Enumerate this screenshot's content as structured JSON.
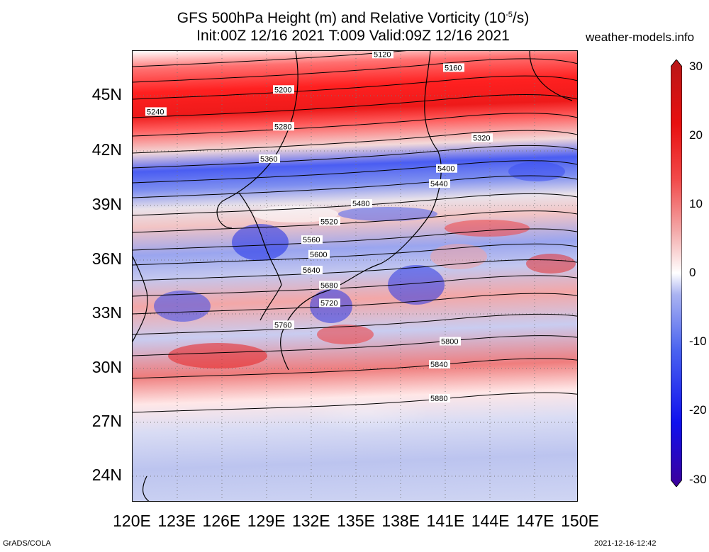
{
  "title": {
    "line1_pre": "GFS 500hPa Height (m) and Relative Vorticity (10",
    "line1_sup": "-5",
    "line1_post": "/s)",
    "line2": "Init:00Z 12/16 2021 T:009 Valid:09Z 12/16 2021"
  },
  "site": "weather-models.info",
  "lat_labels": [
    "45N",
    "42N",
    "39N",
    "36N",
    "33N",
    "30N",
    "27N",
    "24N"
  ],
  "lon_labels": [
    "120E",
    "123E",
    "126E",
    "129E",
    "132E",
    "135E",
    "138E",
    "141E",
    "144E",
    "147E",
    "150E"
  ],
  "colorbar": {
    "labels": [
      "30",
      "20",
      "10",
      "0",
      "-10",
      "-20",
      "-30"
    ],
    "colors": [
      "#3d0099",
      "#1010ee",
      "#4a63f0",
      "#aab3f1",
      "#ffffff",
      "#f3a8a8",
      "#f24a4a",
      "#e81010",
      "#b81818"
    ]
  },
  "contours": [
    {
      "value": "5120"
    },
    {
      "value": "5160"
    },
    {
      "value": "5200"
    },
    {
      "value": "5240"
    },
    {
      "value": "5280"
    },
    {
      "value": "5320"
    },
    {
      "value": "5360"
    },
    {
      "value": "5400"
    },
    {
      "value": "5440"
    },
    {
      "value": "5480"
    },
    {
      "value": "5520"
    },
    {
      "value": "5560"
    },
    {
      "value": "5600"
    },
    {
      "value": "5640"
    },
    {
      "value": "5680"
    },
    {
      "value": "5720"
    },
    {
      "value": "5760"
    },
    {
      "value": "5800"
    },
    {
      "value": "5840"
    },
    {
      "value": "5880"
    }
  ],
  "footer": {
    "left": "GrADS/COLA",
    "right": "2021-12-16-12:42"
  }
}
